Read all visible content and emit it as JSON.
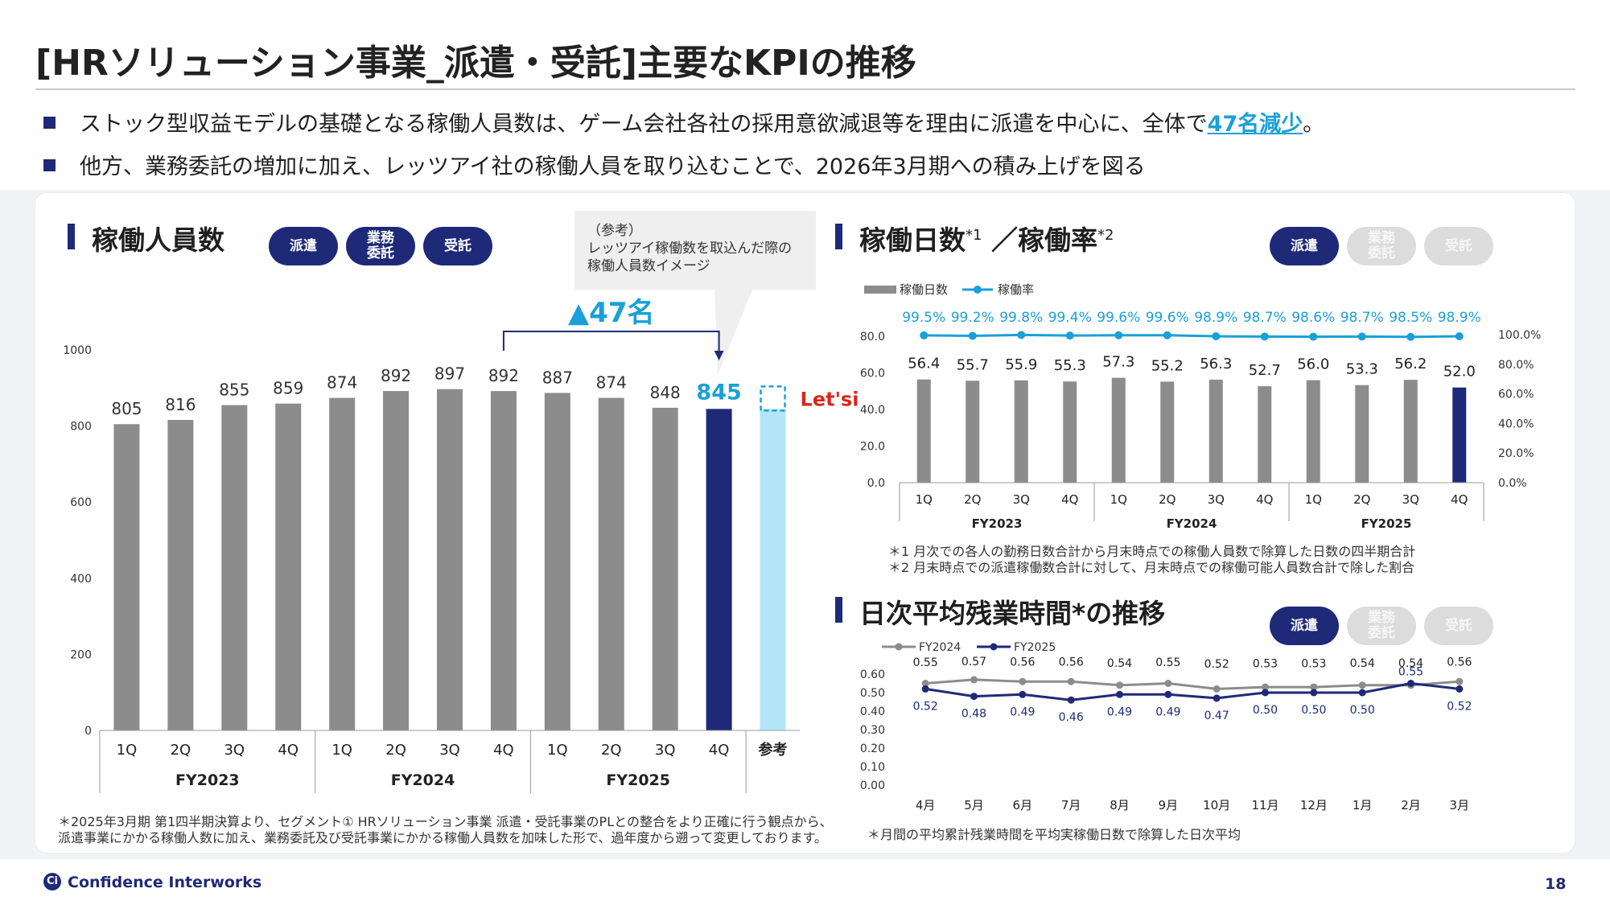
{
  "page": {
    "title": "[HRソリューション事業_派遣・受託]主要なKPIの推移",
    "number": "18",
    "footer_logo": "Confidence Interworks",
    "bullets": [
      {
        "pre": "ストック型収益モデルの基礎となる稼働人員数は、ゲーム会社各社の採用意欲減退等を理由に派遣を中心に、全体で",
        "highlight": "47名減少",
        "post": "。"
      },
      {
        "pre": "他方、業務委託の増加に加え、レッツアイ社の稼働人員を取り込むことで、2026年3月期への積み上げを図る",
        "highlight": "",
        "post": ""
      }
    ]
  },
  "colors": {
    "navy": "#1e2a78",
    "gray_bar": "#8c8c8c",
    "light_blue": "#b3e5f9",
    "cyan": "#1aa0d8",
    "line_gray": "#8c8c8c"
  },
  "pills": {
    "haken": "派遣",
    "gyomu": "業務\n委託",
    "jutaku": "受託"
  },
  "left_section": {
    "title": "稼働人員数",
    "callout": [
      "（参考）",
      "レッツアイ稼働数を取込んだ際の",
      "稼働人員数イメージ"
    ],
    "delta_label": "▲47名",
    "lets_logo": "Let'si",
    "note": [
      "＊2025年3月期 第1四半期決算より、セグメント① HRソリューション事業 派遣・受託事業のPLとの整合をより正確に行う観点から、",
      "派遣事業にかかる稼働人数に加え、業務委託及び受託事業にかかる稼働人員数を加味した形で、過年度から遡って変更しております。"
    ]
  },
  "right_top": {
    "title": "稼働日数",
    "title_sup1": "*1",
    "title_mid": "／稼働率",
    "title_sup2": "*2",
    "notes": [
      "＊1 月次での各人の勤務日数合計から月末時点での稼働人員数で除算した日数の四半期合計",
      "＊2 月末時点での派遣稼働数合計に対して、月末時点での稼働可能人員数合計で除した割合"
    ]
  },
  "right_bottom": {
    "title": "日次平均残業時間*の推移",
    "note": "＊月間の平均累計残業時間を平均実稼働日数で除算した日次平均"
  },
  "chart_data": [
    {
      "type": "bar",
      "title": "稼働人員数",
      "categories": [
        "1Q",
        "2Q",
        "3Q",
        "4Q",
        "1Q",
        "2Q",
        "3Q",
        "4Q",
        "1Q",
        "2Q",
        "3Q",
        "4Q",
        "参考"
      ],
      "groups": [
        {
          "label": "FY2023",
          "span": 4
        },
        {
          "label": "FY2024",
          "span": 4
        },
        {
          "label": "FY2025",
          "span": 4
        }
      ],
      "values": [
        805,
        816,
        855,
        859,
        874,
        892,
        897,
        892,
        887,
        874,
        848,
        845,
        845
      ],
      "value_labels": [
        "805",
        "816",
        "855",
        "859",
        "874",
        "892",
        "897",
        "892",
        "887",
        "874",
        "848",
        "845",
        ""
      ],
      "highlight_index": 11,
      "reference_index": 12,
      "ylim": [
        0,
        1000
      ],
      "yticks": [
        0,
        200,
        400,
        600,
        800,
        1000
      ],
      "ytick_labels": [
        "0",
        "200",
        "400",
        "600",
        "800",
        "1000"
      ]
    },
    {
      "type": "bar",
      "title": "稼働日数／稼働率",
      "legend": [
        "稼働日数",
        "稼働率"
      ],
      "categories": [
        "1Q",
        "2Q",
        "3Q",
        "4Q",
        "1Q",
        "2Q",
        "3Q",
        "4Q",
        "1Q",
        "2Q",
        "3Q",
        "4Q"
      ],
      "groups": [
        {
          "label": "FY2023",
          "span": 4
        },
        {
          "label": "FY2024",
          "span": 4
        },
        {
          "label": "FY2025",
          "span": 4
        }
      ],
      "series": [
        {
          "name": "稼働日数",
          "values": [
            56.4,
            55.7,
            55.9,
            55.3,
            57.3,
            55.2,
            56.3,
            52.7,
            56.0,
            53.3,
            56.2,
            52.0
          ],
          "labels": [
            "56.4",
            "55.7",
            "55.9",
            "55.3",
            "57.3",
            "55.2",
            "56.3",
            "52.7",
            "56.0",
            "53.3",
            "56.2",
            "52.0"
          ]
        },
        {
          "name": "稼働率",
          "values": [
            99.5,
            99.2,
            99.8,
            99.4,
            99.6,
            99.6,
            98.9,
            98.7,
            98.6,
            98.7,
            98.5,
            98.9
          ],
          "labels": [
            "99.5%",
            "99.2%",
            "99.8%",
            "99.4%",
            "99.6%",
            "99.6%",
            "98.9%",
            "98.7%",
            "98.6%",
            "98.7%",
            "98.5%",
            "98.9%"
          ]
        }
      ],
      "highlight_index": 11,
      "ylim": [
        0,
        80
      ],
      "yticks": [
        0,
        20,
        40,
        60,
        80
      ],
      "ytick_labels": [
        "0.0",
        "20.0",
        "40.0",
        "60.0",
        "80.0"
      ],
      "y2lim": [
        0,
        100
      ],
      "y2ticks": [
        0,
        20,
        40,
        60,
        80,
        100
      ],
      "y2tick_labels": [
        "0.0%",
        "20.0%",
        "40.0%",
        "60.0%",
        "80.0%",
        "100.0%"
      ]
    },
    {
      "type": "line",
      "title": "日次平均残業時間の推移",
      "legend": [
        "FY2024",
        "FY2025"
      ],
      "categories": [
        "4月",
        "5月",
        "6月",
        "7月",
        "8月",
        "9月",
        "10月",
        "11月",
        "12月",
        "1月",
        "2月",
        "3月"
      ],
      "series": [
        {
          "name": "FY2024",
          "values": [
            0.55,
            0.57,
            0.56,
            0.56,
            0.54,
            0.55,
            0.52,
            0.53,
            0.53,
            0.54,
            0.54,
            0.56
          ],
          "labels": [
            "0.55",
            "0.57",
            "0.56",
            "0.56",
            "0.54",
            "0.55",
            "0.52",
            "0.53",
            "0.53",
            "0.54",
            "0.54",
            "0.56"
          ]
        },
        {
          "name": "FY2025",
          "values": [
            0.52,
            0.48,
            0.49,
            0.46,
            0.49,
            0.49,
            0.47,
            0.5,
            0.5,
            0.5,
            0.55,
            0.52
          ],
          "labels": [
            "0.52",
            "0.48",
            "0.49",
            "0.46",
            "0.49",
            "0.49",
            "0.47",
            "0.50",
            "0.50",
            "0.50",
            "0.55",
            "0.52"
          ]
        }
      ],
      "ylim": [
        0,
        0.6
      ],
      "yticks": [
        0,
        0.1,
        0.2,
        0.3,
        0.4,
        0.5,
        0.6
      ],
      "ytick_labels": [
        "0.00",
        "0.10",
        "0.20",
        "0.30",
        "0.40",
        "0.50",
        "0.60"
      ]
    }
  ]
}
